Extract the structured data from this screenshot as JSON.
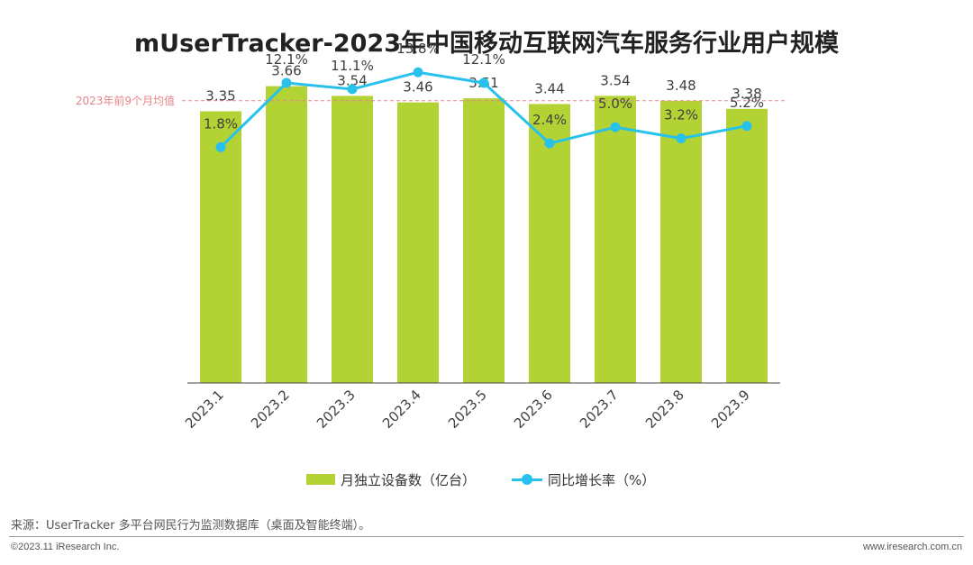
{
  "title": "mUserTracker-2023年中国移动互联网汽车服务行业用户规模",
  "avg_label": "2023年前9个月均值",
  "legend": {
    "bar": "月独立设备数（亿台）",
    "line": "同比增长率（%）"
  },
  "source": "来源：UserTracker 多平台网民行为监测数据库（桌面及智能终端）。",
  "footer": {
    "copyright": "©2023.11 iResearch Inc.",
    "website": "www.iresearch.com.cn"
  },
  "colors": {
    "bar": "#b3d334",
    "line": "#28c1ec",
    "avg_line": "#e8858a",
    "avg_text": "#e8858a"
  },
  "chart_data": {
    "type": "bar",
    "categories": [
      "2023.1",
      "2023.2",
      "2023.3",
      "2023.4",
      "2023.5",
      "2023.6",
      "2023.7",
      "2023.8",
      "2023.9"
    ],
    "series": [
      {
        "name": "月独立设备数（亿台）",
        "type": "bar",
        "values": [
          3.35,
          3.66,
          3.54,
          3.46,
          3.51,
          3.44,
          3.54,
          3.48,
          3.38
        ],
        "labels": [
          "3.35",
          "3.66",
          "3.54",
          "3.46",
          "3.51",
          "3.44",
          "3.54",
          "3.48",
          "3.38"
        ]
      },
      {
        "name": "同比增长率（%）",
        "type": "line",
        "values": [
          1.8,
          12.1,
          11.1,
          13.8,
          12.1,
          2.4,
          5.0,
          3.2,
          5.2
        ],
        "labels": [
          "1.8%",
          "12.1%",
          "11.1%",
          "13.8%",
          "12.1%",
          "2.4%",
          "5.0%",
          "3.2%",
          "5.2%"
        ]
      }
    ],
    "average": 3.48,
    "ylim": [
      0,
      4
    ],
    "ylim_secondary": [
      -10,
      16
    ],
    "grid": false,
    "legend_position": "bottom"
  }
}
